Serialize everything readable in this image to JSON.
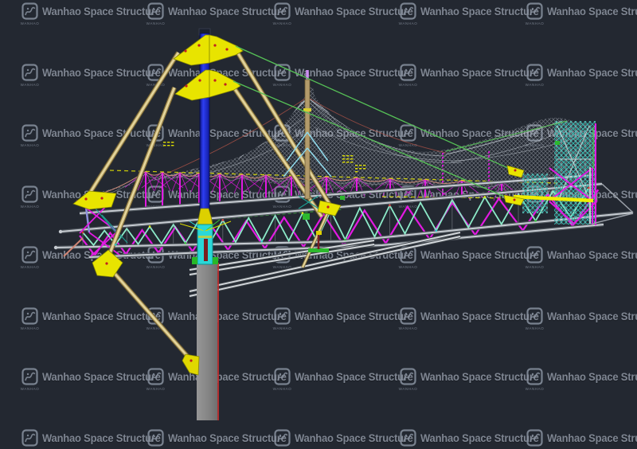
{
  "viewport": {
    "type": "cad-3d-model-view",
    "description": "Perspective view of a mast-and-cable supported space truss with membrane net canopy and concrete column"
  },
  "watermark": {
    "brand_text": "Wanhao Space Structure",
    "logo_text": "WANHAO",
    "grid": {
      "cols": 5,
      "rows": 8
    }
  },
  "palette": {
    "background": "#232831",
    "watermark": "#929aa7",
    "mast_blue": "#2636e6",
    "mast_blue_dark": "#0c1584",
    "strut_tan": "#cdba7d",
    "strut_tan_dark": "#6e5c2e",
    "strut_tan_light": "#efe3ad",
    "gusset_yellow": "#e8e400",
    "bolt_red": "#c02020",
    "truss_magenta": "#e219e2",
    "lacing_mint": "#8ceac8",
    "chord_gray_light": "#c6cbd1",
    "chord_gray_dark": "#4e555c",
    "cable_green": "#56c156",
    "mesh_gray": "#b9bfc8",
    "scallop_salmon": "#d4907e",
    "pin_cyan": "#2ad8d8",
    "column_gray": "#8a8a8a",
    "edge_red": "#c03030",
    "post_purple": "#8f92dd",
    "lattice_teal": "#35b8ae",
    "tip_violet": "#cd8ef2",
    "mark_green": "#2db82d",
    "dash_yellow": "#e8e800"
  }
}
